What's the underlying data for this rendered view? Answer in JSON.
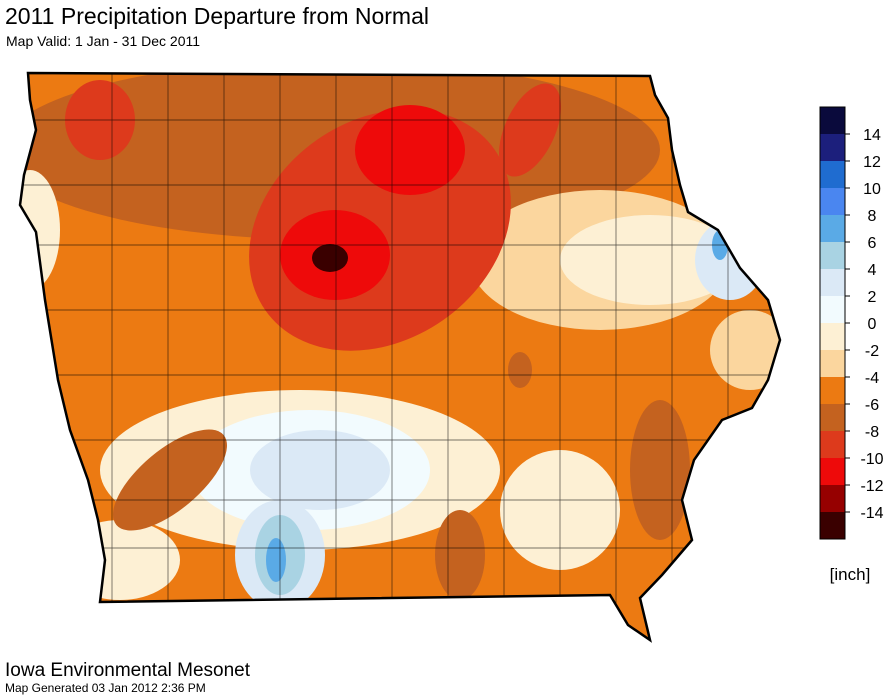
{
  "header": {
    "title": "2011 Precipitation Departure from Normal",
    "subtitle": "Map Valid: 1 Jan - 31 Dec 2011"
  },
  "legend": {
    "colors": [
      "#0a0a3c",
      "#1c1f7c",
      "#1f6cd0",
      "#4a86f0",
      "#5aaae6",
      "#a9d3e3",
      "#dbe9f6",
      "#f2fbfe",
      "#fdf0d4",
      "#fbd69e",
      "#ec7a12",
      "#c4621f",
      "#dd3a1c",
      "#ee0a0a",
      "#960000",
      "#3a0000"
    ],
    "ticks": [
      14,
      12,
      10,
      8,
      6,
      4,
      2,
      0,
      -2,
      -4,
      -6,
      -8,
      -10,
      -12,
      -14
    ],
    "unit": "[inch]"
  },
  "footer": {
    "source": "Iowa Environmental Mesonet",
    "generated": "Map Generated 03 Jan 2012 2:36 PM"
  }
}
